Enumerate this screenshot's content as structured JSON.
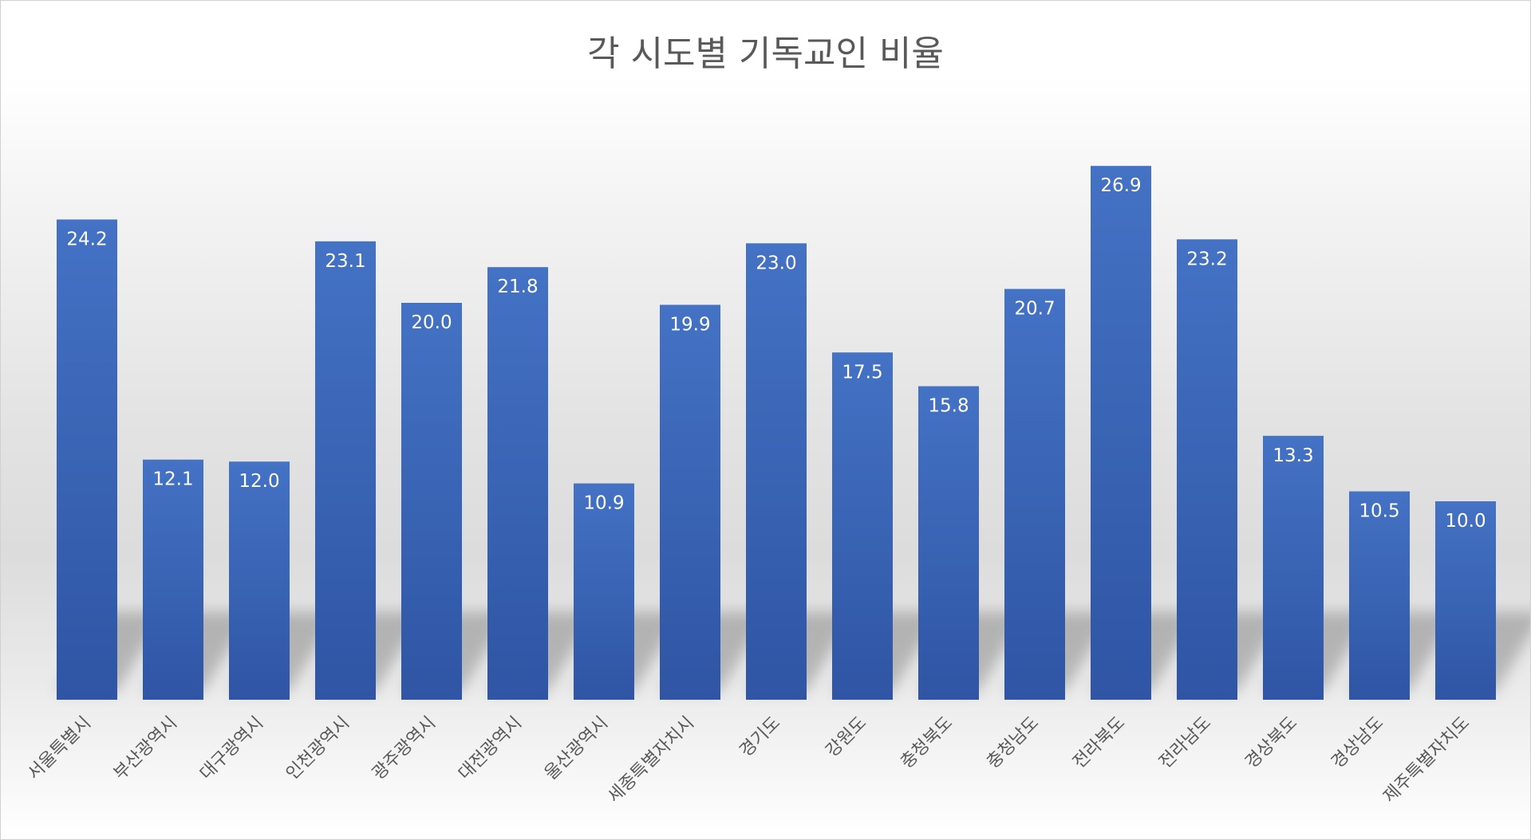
{
  "chart_data": {
    "type": "bar",
    "title": "각 시도별 기독교인 비율",
    "xlabel": "",
    "ylabel": "",
    "ylim": [
      0,
      27.5
    ],
    "grid": false,
    "legend": "none",
    "categories": [
      "서울특별시",
      "부산광역시",
      "대구광역시",
      "인천광역시",
      "광주광역시",
      "대전광역시",
      "울산광역시",
      "세종특별자치시",
      "경기도",
      "강원도",
      "충청북도",
      "충청남도",
      "전라북도",
      "전라남도",
      "경상북도",
      "경상남도",
      "제주특별자치도"
    ],
    "values": [
      24.2,
      12.1,
      12.0,
      23.1,
      20.0,
      21.8,
      10.9,
      19.9,
      23.0,
      17.5,
      15.8,
      20.7,
      26.9,
      23.2,
      13.3,
      10.5,
      10.0
    ],
    "value_labels": [
      "24.2",
      "12.1",
      "12.0",
      "23.1",
      "20.0",
      "21.8",
      "10.9",
      "19.9",
      "23.0",
      "17.5",
      "15.8",
      "20.7",
      "26.9",
      "23.2",
      "13.3",
      "10.5",
      "10.0"
    ],
    "colors": {
      "bar_top": "#4472c4",
      "bar_bottom": "#2f55a4",
      "title": "#595959",
      "tick": "#595959",
      "data_label": "#ffffff"
    }
  }
}
